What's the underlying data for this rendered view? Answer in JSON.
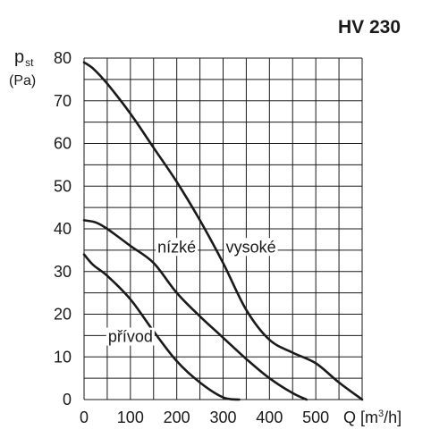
{
  "chart_data": {
    "type": "line",
    "title": "HV 230",
    "ylabel": {
      "main": "p",
      "sub": "st",
      "unit": "(Pa)"
    },
    "xlabel": {
      "main": "Q [m",
      "sup": "3",
      "end": "/h]"
    },
    "xlim": [
      0,
      600
    ],
    "ylim": [
      0,
      80
    ],
    "xticks": [
      0,
      100,
      200,
      300,
      400,
      500
    ],
    "yticks": [
      0,
      10,
      20,
      30,
      40,
      50,
      60,
      70,
      80
    ],
    "grid": true,
    "series": [
      {
        "name": "vysoké",
        "x": [
          0,
          20,
          50,
          100,
          150,
          200,
          250,
          300,
          350,
          400,
          450,
          500,
          550,
          600
        ],
        "y": [
          79,
          77.5,
          74,
          67,
          59,
          51,
          42,
          32,
          21,
          14,
          11,
          8.5,
          4,
          0
        ]
      },
      {
        "name": "nízké",
        "x": [
          0,
          25,
          50,
          100,
          150,
          200,
          250,
          300,
          350,
          400,
          450,
          480
        ],
        "y": [
          42,
          41.5,
          40,
          36,
          32,
          25,
          19.5,
          14.5,
          9.5,
          5,
          1.5,
          0
        ]
      },
      {
        "name": "přívod",
        "x": [
          0,
          20,
          50,
          100,
          150,
          200,
          250,
          300,
          335
        ],
        "y": [
          34,
          31.5,
          29,
          23.5,
          16,
          9,
          4,
          0.5,
          0
        ]
      }
    ],
    "labels": [
      {
        "text": "vysoké",
        "x": 360,
        "y": 34.5
      },
      {
        "text": "nízké",
        "x": 200,
        "y": 34.5
      },
      {
        "text": "přívod",
        "x": 100,
        "y": 13.5
      }
    ]
  }
}
